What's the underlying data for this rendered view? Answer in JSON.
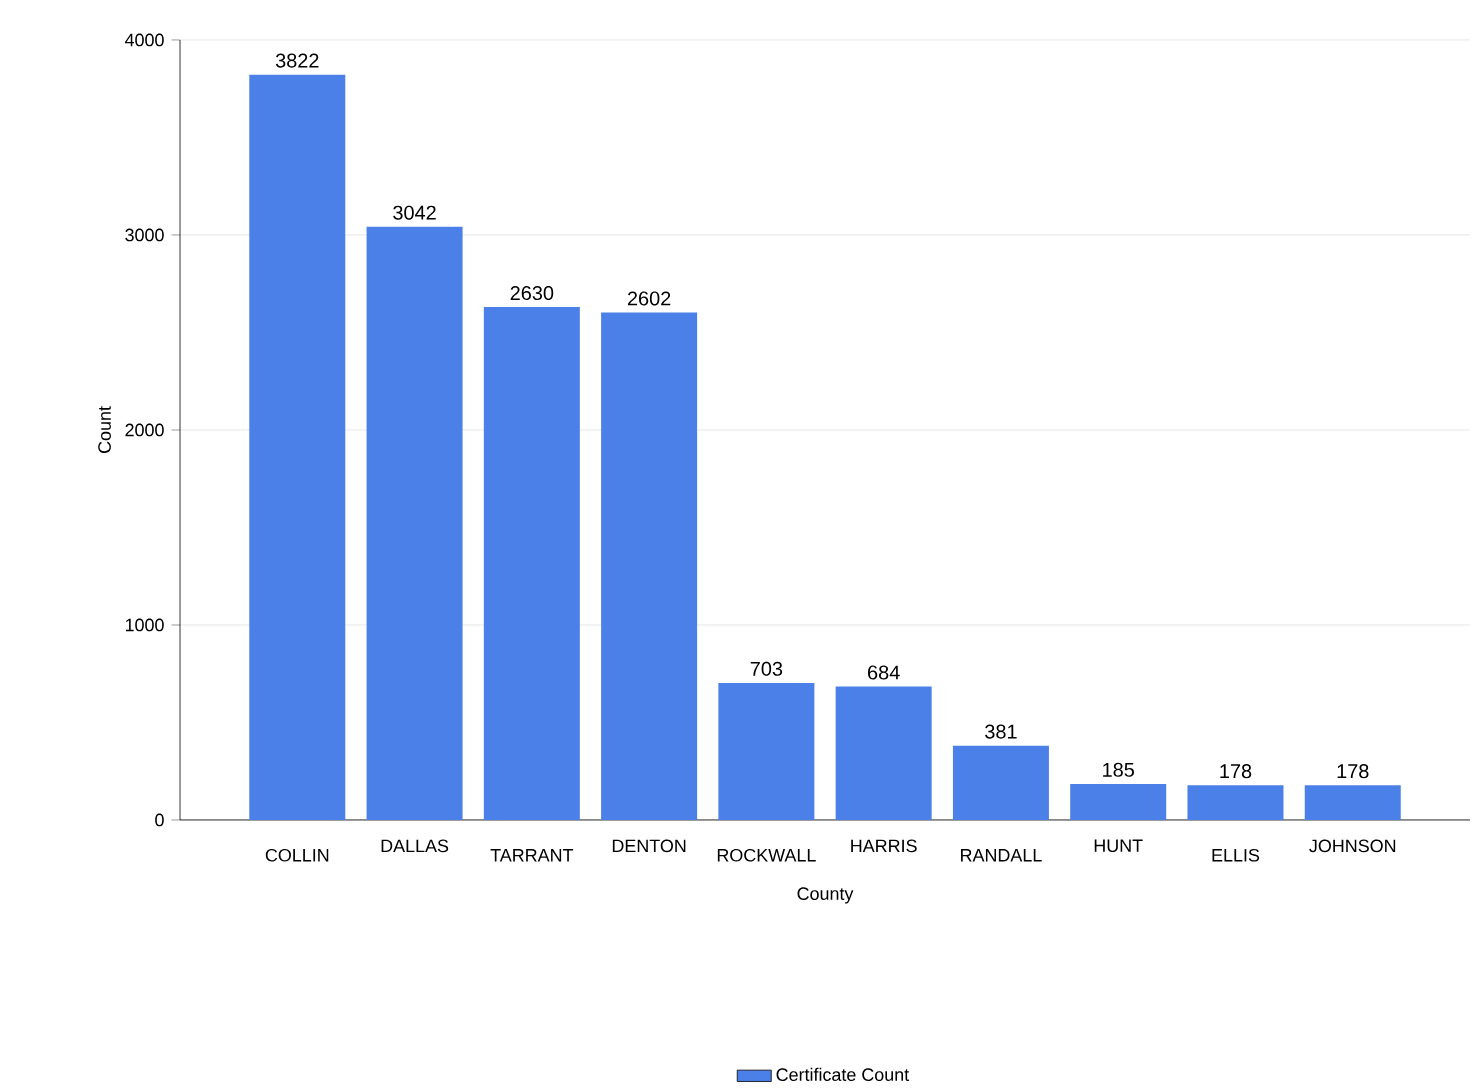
{
  "chart_data": {
    "type": "bar",
    "xlabel": "County",
    "ylabel": "Count",
    "categories": [
      "COLLIN",
      "DALLAS",
      "TARRANT",
      "DENTON",
      "ROCKWALL",
      "HARRIS",
      "RANDALL",
      "HUNT",
      "ELLIS",
      "JOHNSON"
    ],
    "series": [
      {
        "name": "Certificate Count",
        "color": "#4a80e8",
        "values": [
          3822,
          3042,
          2630,
          2602,
          703,
          684,
          381,
          185,
          178,
          178
        ]
      }
    ],
    "ylim": [
      0,
      4000
    ],
    "yticks": [
      0,
      1000,
      2000,
      3000,
      4000
    ],
    "grid": "y",
    "legend": "bottom",
    "data_labels": true
  }
}
